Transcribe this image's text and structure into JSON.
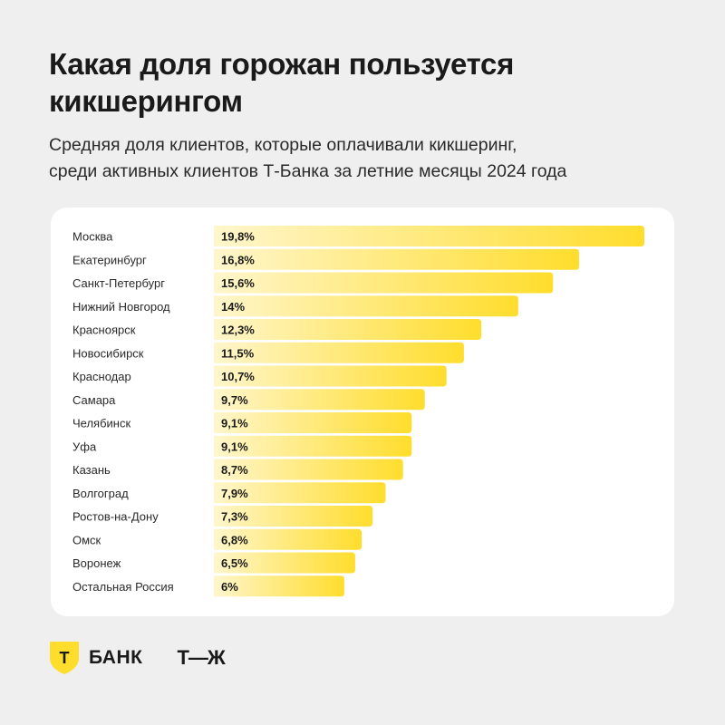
{
  "title_line1": "Какая доля горожан пользуется",
  "title_line2": "кикшерингом",
  "subtitle_line1": "Средняя доля клиентов, которые оплачивали кикшеринг,",
  "subtitle_line2": "среди активных клиентов Т-Банка за летние месяцы 2024 года",
  "brand": {
    "shield_letter": "Т",
    "bank_name": "БАНК",
    "partner_logo": "Т—Ж",
    "colors": {
      "accent": "#FFDD2D",
      "text": "#1a1a1a",
      "background": "#efefef",
      "card": "#ffffff"
    }
  },
  "chart_data": {
    "type": "bar",
    "orientation": "horizontal",
    "categories": [
      "Москва",
      "Екатеринбург",
      "Санкт-Петербург",
      "Нижний Новгород",
      "Красноярск",
      "Новосибирск",
      "Краснодар",
      "Самара",
      "Челябинск",
      "Уфа",
      "Казань",
      "Волгоград",
      "Ростов-на-Дону",
      "Омск",
      "Воронеж",
      "Остальная Россия"
    ],
    "values": [
      19.8,
      16.8,
      15.6,
      14,
      12.3,
      11.5,
      10.7,
      9.7,
      9.1,
      9.1,
      8.7,
      7.9,
      7.3,
      6.8,
      6.5,
      6
    ],
    "labels": [
      "19,8%",
      "16,8%",
      "15,6%",
      "14%",
      "12,3%",
      "11,5%",
      "10,7%",
      "9,7%",
      "9,1%",
      "9,1%",
      "8,7%",
      "7,9%",
      "7,3%",
      "6,8%",
      "6,5%",
      "6%"
    ],
    "unit": "%",
    "xlim": [
      0,
      19.8
    ],
    "grid": false,
    "legend": "none",
    "bar_color_start": "#FFF6CC",
    "bar_color_end": "#FFDD2D"
  }
}
